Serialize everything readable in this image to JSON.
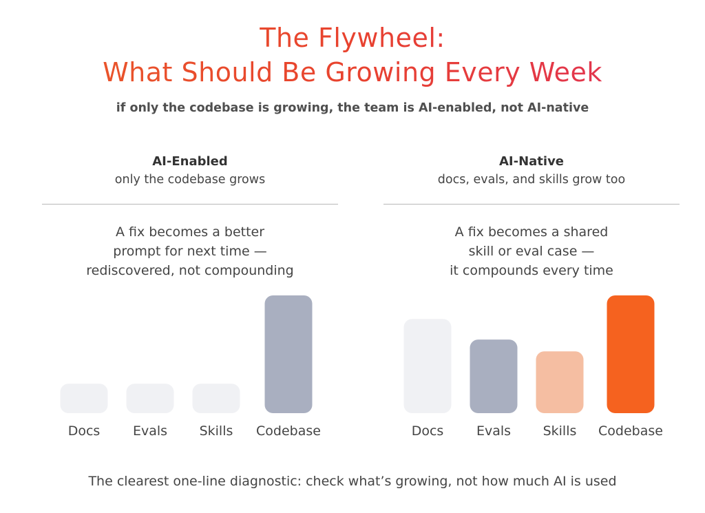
{
  "title_line1": "The Flywheel:",
  "title_line2": "What Should Be Growing Every Week",
  "subtitle": "if only the codebase is growing, the team is AI-enabled, not AI-native",
  "panels": [
    {
      "heading": "AI-Enabled",
      "subheading": "only the codebase grows",
      "desc_lines": [
        "A fix becomes a better",
        "prompt for next time —",
        "rediscovered, not compounding"
      ]
    },
    {
      "heading": "AI-Native",
      "subheading": "docs, evals, and skills grow too",
      "desc_lines": [
        "A fix becomes a shared",
        "skill or eval case —",
        "it compounds every time"
      ]
    }
  ],
  "footer": "The clearest one-line diagnostic: check what’s growing, not how much AI is used",
  "colors": {
    "title_gradient": [
      "#ea5b2a",
      "#e8422e",
      "#e0305a"
    ],
    "bar_light": "#f0f1f4",
    "bar_gray": "#a9afc0",
    "bar_peach": "#f5bea2",
    "bar_orange": "#f5621f"
  },
  "chart_data": [
    {
      "type": "bar",
      "title": "AI-Enabled",
      "categories": [
        "Docs",
        "Evals",
        "Skills",
        "Codebase"
      ],
      "values": [
        1,
        1,
        1,
        4
      ],
      "colors": [
        "#f0f1f4",
        "#f0f1f4",
        "#f0f1f4",
        "#a9afc0"
      ],
      "grid": false
    },
    {
      "type": "bar",
      "title": "AI-Native",
      "categories": [
        "Docs",
        "Evals",
        "Skills",
        "Codebase"
      ],
      "values": [
        3.2,
        2.5,
        2.1,
        4
      ],
      "colors": [
        "#f0f1f4",
        "#a9afc0",
        "#f5bea2",
        "#f5621f"
      ],
      "grid": false
    }
  ]
}
